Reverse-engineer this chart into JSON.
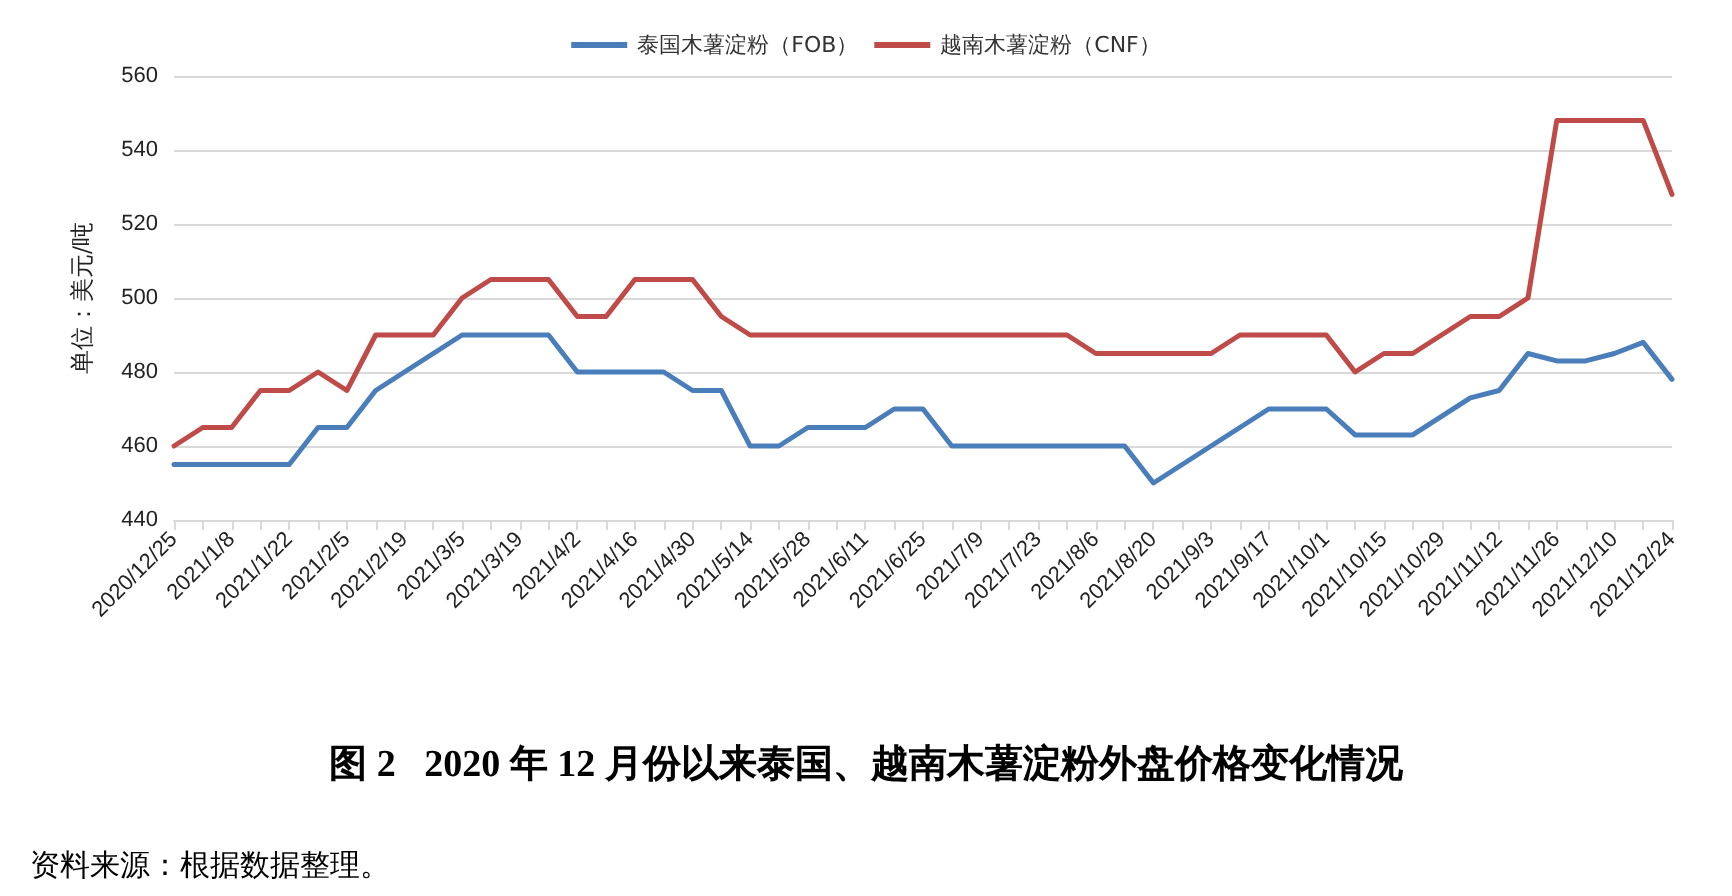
{
  "chart_data": {
    "type": "line",
    "title": "图 2   2020 年 12 月份以来泰国、越南木薯淀粉外盘价格变化情况",
    "ylabel": "单位：美元/吨",
    "annotations": [
      "资料来源：根据数据整理。"
    ],
    "categories": [
      "2020/12/25",
      null,
      "2021/1/8",
      null,
      "2021/1/22",
      null,
      "2021/2/5",
      null,
      "2021/2/19",
      null,
      "2021/3/5",
      null,
      "2021/3/19",
      null,
      "2021/4/2",
      null,
      "2021/4/16",
      null,
      "2021/4/30",
      null,
      "2021/5/14",
      null,
      "2021/5/28",
      null,
      "2021/6/11",
      null,
      "2021/6/25",
      null,
      "2021/7/9",
      null,
      "2021/7/23",
      null,
      "2021/8/6",
      null,
      "2021/8/20",
      null,
      "2021/9/3",
      null,
      "2021/9/17",
      null,
      "2021/10/1",
      null,
      "2021/10/15",
      null,
      "2021/10/29",
      null,
      "2021/11/12",
      null,
      "2021/11/26",
      null,
      "2021/12/10",
      null,
      "2021/12/24"
    ],
    "series": [
      {
        "name": "泰国木薯淀粉（FOB）",
        "color": "#4a7ebb",
        "values": [
          455,
          455,
          455,
          455,
          455,
          465,
          465,
          475,
          480,
          485,
          490,
          490,
          490,
          490,
          480,
          480,
          480,
          480,
          475,
          475,
          460,
          460,
          465,
          465,
          465,
          470,
          470,
          460,
          460,
          460,
          460,
          460,
          460,
          460,
          450,
          455,
          460,
          465,
          470,
          470,
          470,
          463,
          463,
          463,
          468,
          473,
          475,
          485,
          483,
          483,
          485,
          488,
          478
        ]
      },
      {
        "name": "越南木薯淀粉（CNF）",
        "color": "#be4b48",
        "values": [
          460,
          465,
          465,
          475,
          475,
          480,
          475,
          490,
          490,
          490,
          500,
          505,
          505,
          505,
          495,
          495,
          505,
          505,
          505,
          495,
          490,
          490,
          490,
          490,
          490,
          490,
          490,
          490,
          490,
          490,
          490,
          490,
          485,
          485,
          485,
          485,
          485,
          490,
          490,
          490,
          490,
          480,
          485,
          485,
          490,
          495,
          495,
          500,
          548,
          548,
          548,
          548,
          528
        ]
      }
    ],
    "ylim": [
      440,
      560
    ],
    "yticks": [
      440,
      460,
      480,
      500,
      520,
      540,
      560
    ],
    "grid": "y",
    "legend": "top",
    "marker": "none",
    "line_style": "solid"
  }
}
